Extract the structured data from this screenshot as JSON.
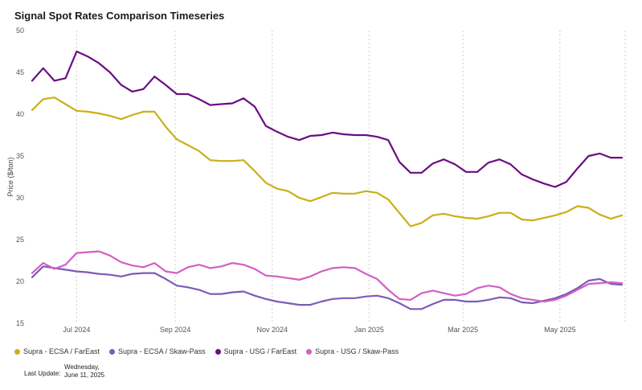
{
  "title": "Signal Spot Rates Comparison Timeseries",
  "last_update_label": "Last Update:",
  "last_update_line1": "Wednesday,",
  "last_update_line2": "June 11, 2025",
  "chart_data": {
    "type": "line",
    "title": "Signal Spot Rates Comparison Timeseries",
    "xlabel": "",
    "ylabel": "Price ($/ton)",
    "ylim": [
      15,
      50
    ],
    "yticks": [
      15,
      20,
      25,
      30,
      35,
      40,
      45,
      50
    ],
    "xlim": [
      "2024-06-01",
      "2025-06-11"
    ],
    "xticks": [
      {
        "date": "2024-07-01",
        "label": "Jul 2024"
      },
      {
        "date": "2024-09-01",
        "label": "Sep 2024"
      },
      {
        "date": "2024-11-01",
        "label": "Nov 2024"
      },
      {
        "date": "2025-01-01",
        "label": "Jan 2025"
      },
      {
        "date": "2025-03-01",
        "label": "Mar 2025"
      },
      {
        "date": "2025-05-01",
        "label": "May 2025"
      }
    ],
    "grid": "vertical dotted",
    "legend_position": "bottom-left",
    "x": [
      "2024-06-03",
      "2024-06-10",
      "2024-06-17",
      "2024-06-24",
      "2024-07-01",
      "2024-07-08",
      "2024-07-15",
      "2024-07-22",
      "2024-07-29",
      "2024-08-05",
      "2024-08-12",
      "2024-08-19",
      "2024-08-26",
      "2024-09-02",
      "2024-09-09",
      "2024-09-16",
      "2024-09-23",
      "2024-09-30",
      "2024-10-07",
      "2024-10-14",
      "2024-10-21",
      "2024-10-28",
      "2024-11-04",
      "2024-11-11",
      "2024-11-18",
      "2024-11-25",
      "2024-12-02",
      "2024-12-09",
      "2024-12-16",
      "2024-12-23",
      "2024-12-30",
      "2025-01-06",
      "2025-01-13",
      "2025-01-20",
      "2025-01-27",
      "2025-02-03",
      "2025-02-10",
      "2025-02-17",
      "2025-02-24",
      "2025-03-03",
      "2025-03-10",
      "2025-03-17",
      "2025-03-24",
      "2025-03-31",
      "2025-04-07",
      "2025-04-14",
      "2025-04-21",
      "2025-04-28",
      "2025-05-05",
      "2025-05-12",
      "2025-05-19",
      "2025-05-26",
      "2025-06-02",
      "2025-06-09"
    ],
    "series": [
      {
        "name": "Supra - ECSA / FarEast",
        "color": "#c9b018",
        "values": [
          40.5,
          41.8,
          42.0,
          41.2,
          40.4,
          40.3,
          40.1,
          39.8,
          39.4,
          39.9,
          40.3,
          40.3,
          38.5,
          37.0,
          36.3,
          35.6,
          34.5,
          34.4,
          34.4,
          34.5,
          33.2,
          31.8,
          31.1,
          30.8,
          30.0,
          29.6,
          30.1,
          30.6,
          30.5,
          30.5,
          30.8,
          30.6,
          29.8,
          28.2,
          26.6,
          27.0,
          27.9,
          28.1,
          27.8,
          27.6,
          27.5,
          27.8,
          28.2,
          28.2,
          27.4,
          27.3,
          27.6,
          27.9,
          28.3,
          29.0,
          28.8,
          28.0,
          27.5,
          27.9
        ]
      },
      {
        "name": "Supra - ECSA / Skaw-Pass",
        "color": "#7b5cb6",
        "values": [
          20.5,
          21.8,
          21.6,
          21.4,
          21.2,
          21.1,
          20.9,
          20.8,
          20.6,
          20.9,
          21.0,
          21.0,
          20.3,
          19.5,
          19.3,
          19.0,
          18.5,
          18.5,
          18.7,
          18.8,
          18.3,
          17.9,
          17.6,
          17.4,
          17.2,
          17.2,
          17.6,
          17.9,
          18.0,
          18.0,
          18.2,
          18.3,
          18.0,
          17.4,
          16.7,
          16.7,
          17.3,
          17.8,
          17.8,
          17.6,
          17.6,
          17.8,
          18.1,
          18.0,
          17.5,
          17.4,
          17.7,
          18.0,
          18.5,
          19.2,
          20.1,
          20.3,
          19.7,
          19.6
        ]
      },
      {
        "name": "Supra - USG / FarEast",
        "color": "#6a0d83",
        "values": [
          44.0,
          45.5,
          44.0,
          44.3,
          47.5,
          46.9,
          46.1,
          45.0,
          43.5,
          42.7,
          43.0,
          44.5,
          43.5,
          42.4,
          42.4,
          41.8,
          41.1,
          41.2,
          41.3,
          41.9,
          40.9,
          38.6,
          37.9,
          37.3,
          36.9,
          37.4,
          37.5,
          37.8,
          37.6,
          37.5,
          37.5,
          37.3,
          36.9,
          34.3,
          33.0,
          33.0,
          34.1,
          34.6,
          34.0,
          33.1,
          33.1,
          34.2,
          34.6,
          34.0,
          32.8,
          32.2,
          31.7,
          31.3,
          31.9,
          33.5,
          35.0,
          35.3,
          34.8,
          34.8
        ]
      },
      {
        "name": "Supra - USG / Skaw-Pass",
        "color": "#d35fc4",
        "values": [
          21.0,
          22.2,
          21.5,
          22.0,
          23.4,
          23.5,
          23.6,
          23.1,
          22.3,
          21.9,
          21.7,
          22.2,
          21.2,
          21.0,
          21.7,
          22.0,
          21.6,
          21.8,
          22.2,
          22.0,
          21.5,
          20.7,
          20.6,
          20.4,
          20.2,
          20.6,
          21.2,
          21.6,
          21.7,
          21.6,
          20.9,
          20.3,
          19.0,
          17.9,
          17.8,
          18.6,
          18.9,
          18.6,
          18.3,
          18.5,
          19.2,
          19.5,
          19.3,
          18.5,
          18.0,
          17.8,
          17.6,
          17.8,
          18.3,
          19.0,
          19.7,
          19.8,
          19.9,
          19.8
        ]
      }
    ]
  }
}
